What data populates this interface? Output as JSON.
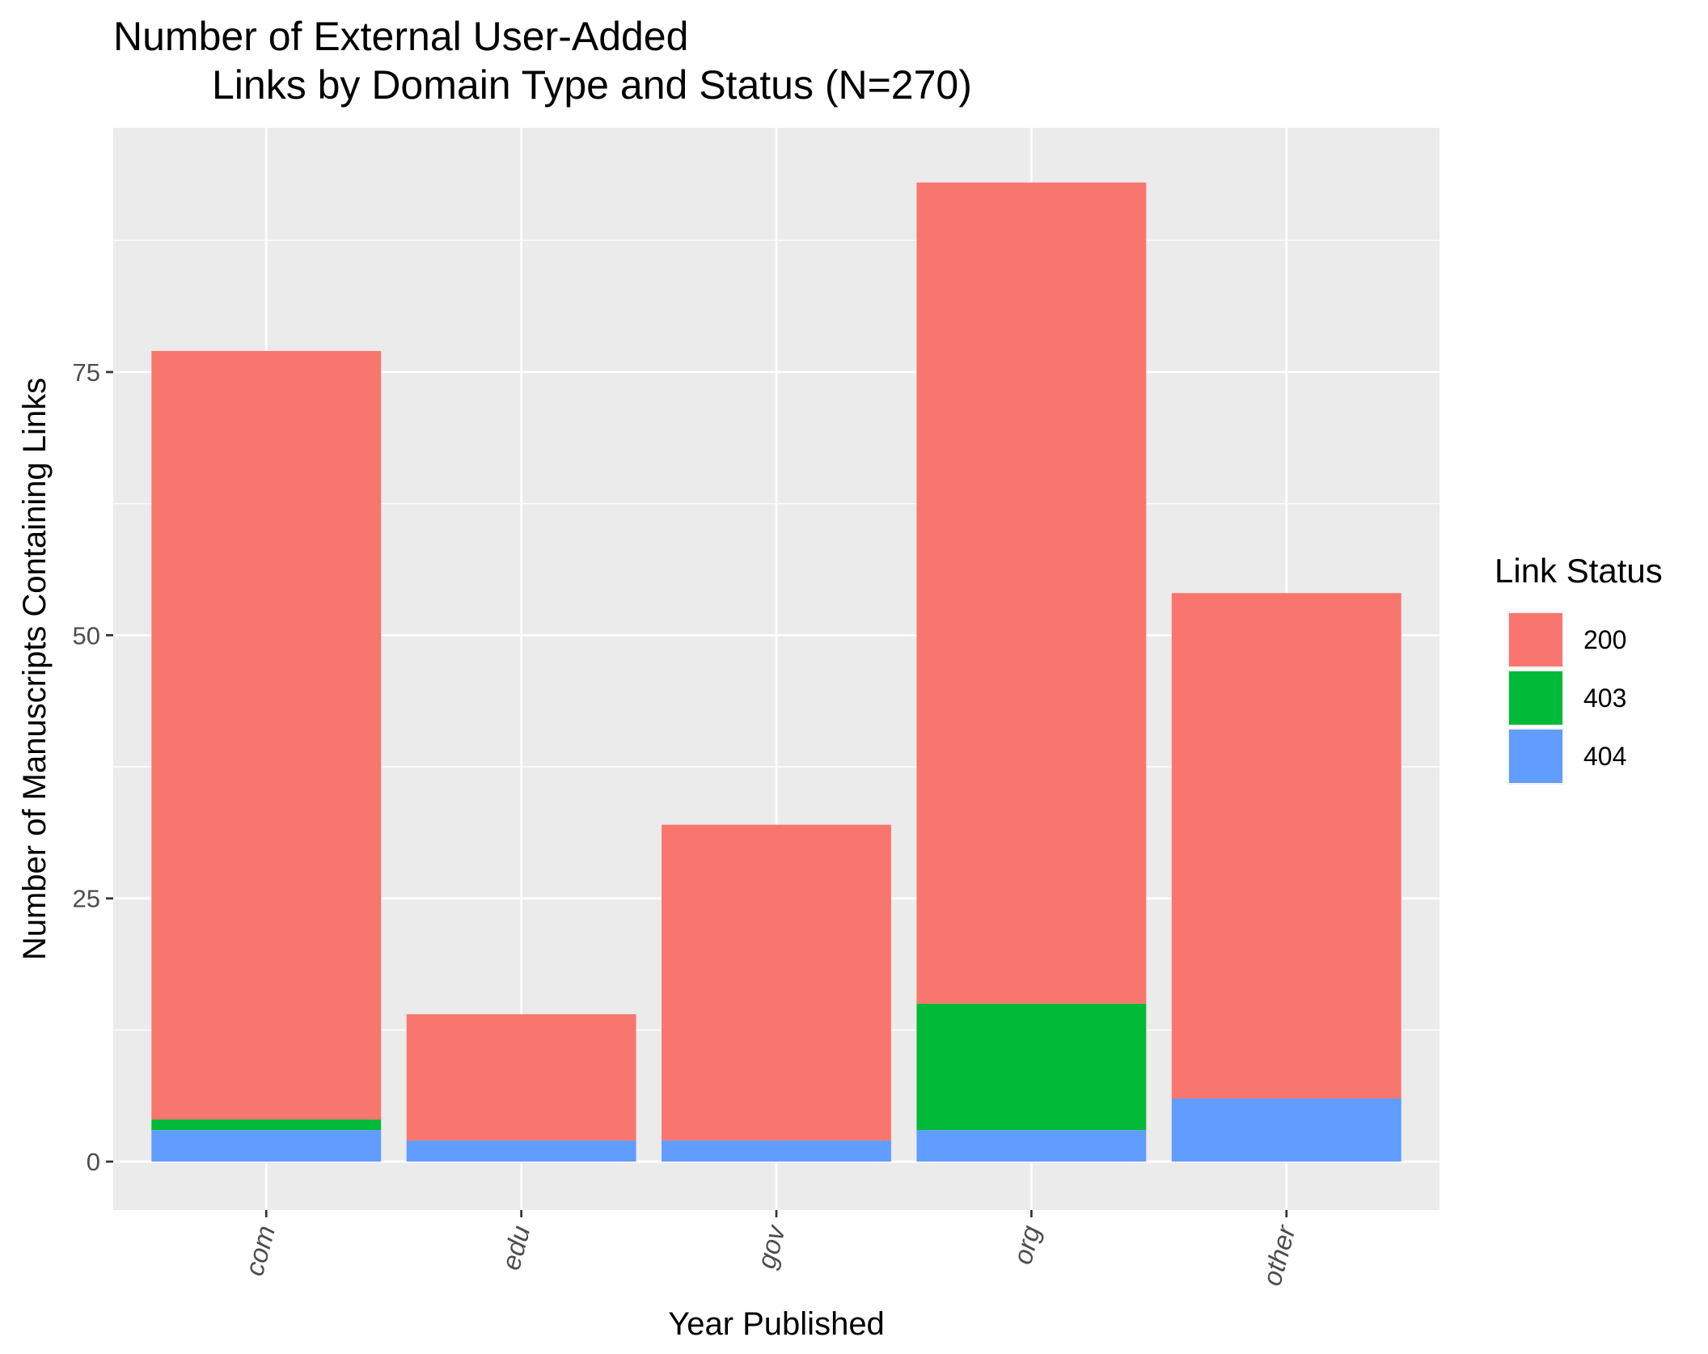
{
  "chart_data": {
    "type": "bar",
    "stacked": true,
    "title_lines": [
      "Number of External User-Added",
      "Links by Domain Type and Status (N=270)"
    ],
    "xlabel": "Year Published",
    "ylabel": "Number of Manuscripts Containing Links",
    "categories": [
      "com",
      "edu",
      "gov",
      "org",
      "other"
    ],
    "series": [
      {
        "name": "404",
        "color": "#619CFF",
        "values": [
          3,
          2,
          2,
          3,
          6
        ]
      },
      {
        "name": "403",
        "color": "#00BA38",
        "values": [
          1,
          0,
          0,
          12,
          0
        ]
      },
      {
        "name": "200",
        "color": "#F8766D",
        "values": [
          73,
          12,
          30,
          78,
          48
        ]
      }
    ],
    "ylim": [
      -4.6,
      98.2
    ],
    "yticks": [
      0,
      25,
      50,
      75
    ],
    "grid": true,
    "panel_background": "#EBEBEB",
    "legend": {
      "title": "Link Status",
      "position": "right",
      "entries": [
        {
          "label": "200",
          "color": "#F8766D"
        },
        {
          "label": "403",
          "color": "#00BA38"
        },
        {
          "label": "404",
          "color": "#619CFF"
        }
      ]
    }
  }
}
